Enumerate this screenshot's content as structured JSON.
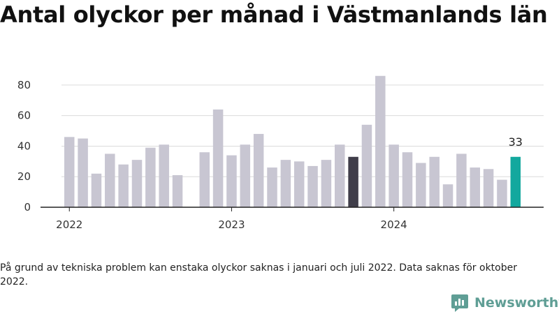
{
  "title": "Antal olyckor per månad i Västmanlands län",
  "footnote": "På grund av tekniska problem kan enstaka olyckor saknas i januari och juli 2022. Data saknas för oktober 2022.",
  "brand": {
    "name": "Newsworthy",
    "icon": "newsworthy-logo-icon"
  },
  "colors": {
    "bar": "#c8c6d2",
    "highlight_previous_year": "#403e4a",
    "highlight_latest": "#13a89e",
    "grid": "#dcdcdc",
    "axis": "#222222",
    "brand": "#5f9e95"
  },
  "chart_data": {
    "type": "bar",
    "title": "Antal olyckor per månad i Västmanlands län",
    "xlabel": "",
    "ylabel": "",
    "ylim": [
      0,
      90
    ],
    "yticks": [
      0,
      20,
      40,
      60,
      80
    ],
    "grid": true,
    "year_ticks": [
      "2022",
      "2023",
      "2024"
    ],
    "categories": [
      "2022-01",
      "2022-02",
      "2022-03",
      "2022-04",
      "2022-05",
      "2022-06",
      "2022-07",
      "2022-08",
      "2022-09",
      "2022-10",
      "2022-11",
      "2022-12",
      "2023-01",
      "2023-02",
      "2023-03",
      "2023-04",
      "2023-05",
      "2023-06",
      "2023-07",
      "2023-08",
      "2023-09",
      "2023-10",
      "2023-11",
      "2023-12",
      "2024-01",
      "2024-02",
      "2024-03",
      "2024-04",
      "2024-05",
      "2024-06",
      "2024-07",
      "2024-08",
      "2024-09",
      "2024-10"
    ],
    "values": [
      46,
      45,
      22,
      35,
      28,
      31,
      39,
      41,
      21,
      null,
      36,
      64,
      34,
      41,
      48,
      26,
      31,
      30,
      27,
      31,
      41,
      33,
      54,
      86,
      41,
      36,
      29,
      33,
      15,
      35,
      26,
      25,
      18,
      33
    ],
    "highlight_previous_year_index": 21,
    "highlight_latest_index": 33,
    "data_labels": [
      {
        "index": 33,
        "text": "33"
      }
    ]
  }
}
